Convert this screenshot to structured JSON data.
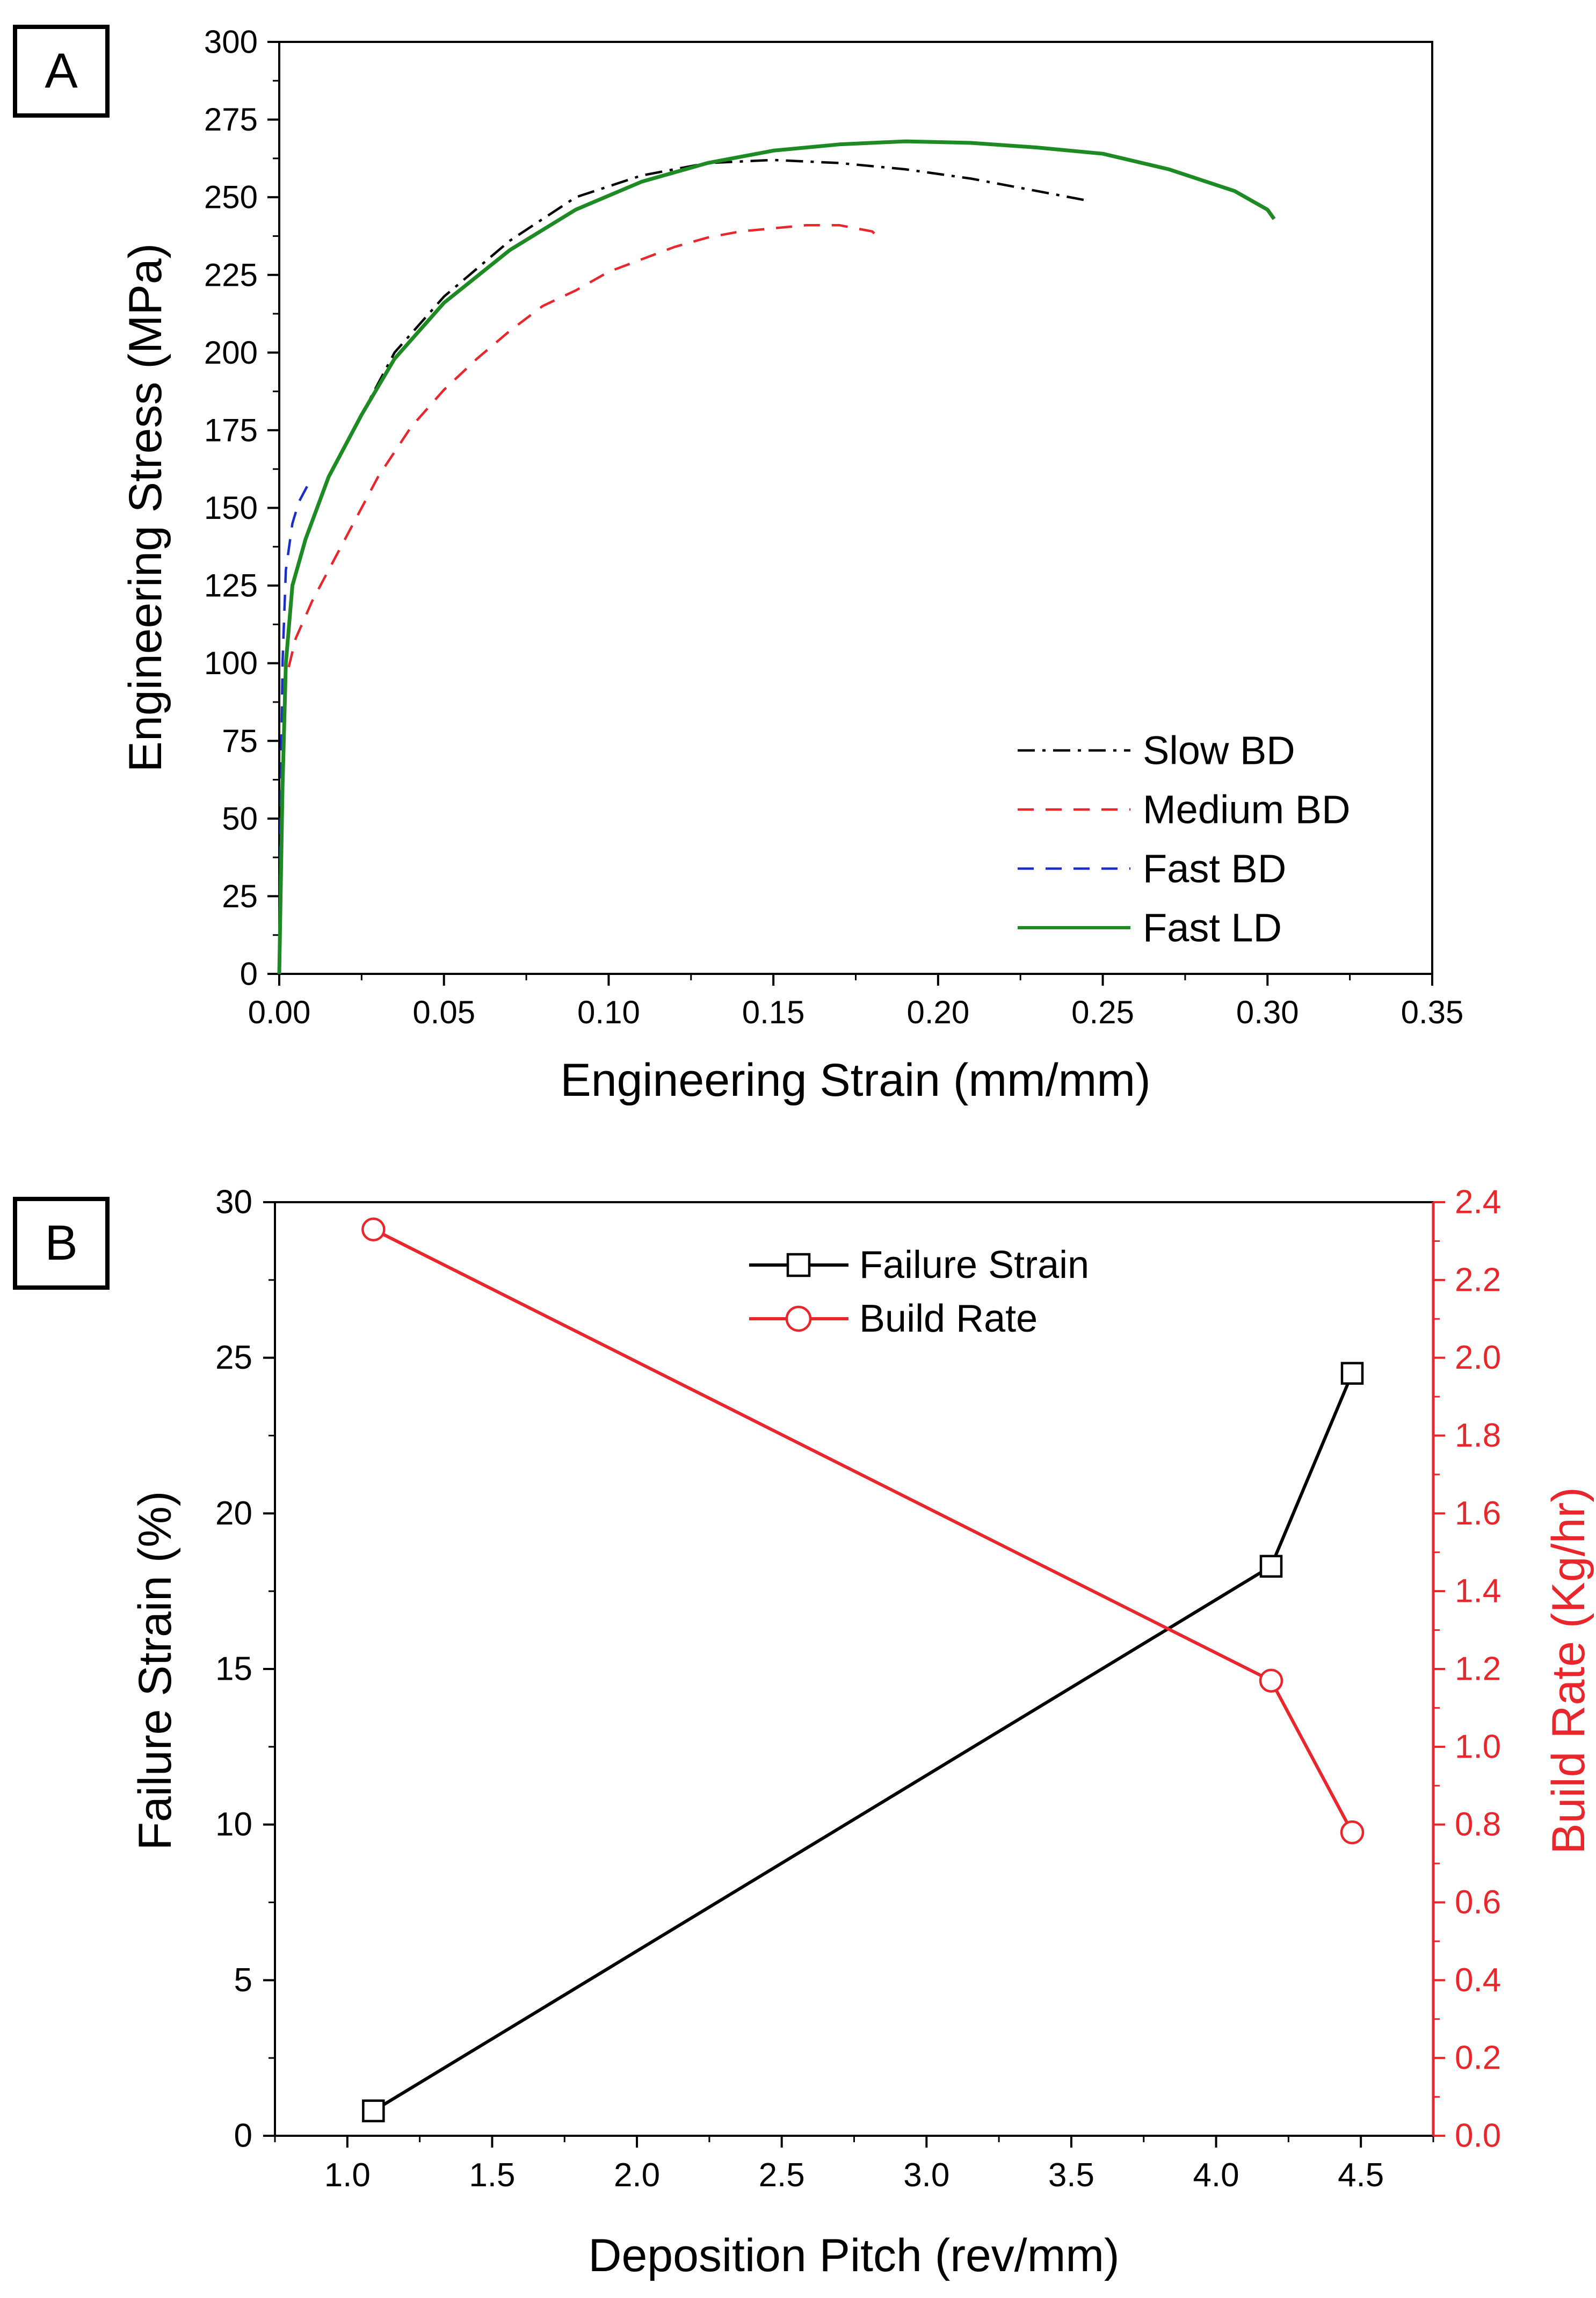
{
  "chart_data": [
    {
      "panel_label": "A",
      "type": "line",
      "xlabel": "Engineering Strain (mm/mm)",
      "ylabel": "Engineering Stress (MPa)",
      "xlim": [
        0,
        0.35
      ],
      "ylim": [
        0,
        300
      ],
      "x_ticks": [
        0,
        0.05,
        0.1,
        0.15,
        0.2,
        0.25,
        0.3,
        0.35
      ],
      "x_tick_labels": [
        "0.00",
        "0.05",
        "0.10",
        "0.15",
        "0.20",
        "0.25",
        "0.30",
        "0.35"
      ],
      "y_ticks": [
        0,
        25,
        50,
        75,
        100,
        125,
        150,
        175,
        200,
        225,
        250,
        275,
        300
      ],
      "y_tick_labels": [
        "0",
        "25",
        "50",
        "75",
        "100",
        "125",
        "150",
        "175",
        "200",
        "225",
        "250",
        "275",
        "300"
      ],
      "legend_position": "bottom-right",
      "series": [
        {
          "name": "Slow BD",
          "color": "#000000",
          "style": "dashdot",
          "points": [
            [
              0,
              0
            ],
            [
              0.001,
              60
            ],
            [
              0.002,
              100
            ],
            [
              0.004,
              125
            ],
            [
              0.008,
              140
            ],
            [
              0.015,
              160
            ],
            [
              0.025,
              180
            ],
            [
              0.035,
              200
            ],
            [
              0.05,
              218
            ],
            [
              0.07,
              236
            ],
            [
              0.09,
              250
            ],
            [
              0.11,
              257
            ],
            [
              0.13,
              261
            ],
            [
              0.15,
              262
            ],
            [
              0.17,
              261
            ],
            [
              0.19,
              259
            ],
            [
              0.21,
              256
            ],
            [
              0.23,
              252
            ],
            [
              0.245,
              249
            ]
          ]
        },
        {
          "name": "Medium BD",
          "color": "#e8262b",
          "style": "dashed",
          "points": [
            [
              0,
              0
            ],
            [
              0.001,
              60
            ],
            [
              0.002,
              95
            ],
            [
              0.005,
              108
            ],
            [
              0.01,
              120
            ],
            [
              0.02,
              140
            ],
            [
              0.03,
              160
            ],
            [
              0.04,
              176
            ],
            [
              0.05,
              188
            ],
            [
              0.06,
              198
            ],
            [
              0.07,
              207
            ],
            [
              0.08,
              215
            ],
            [
              0.09,
              220
            ],
            [
              0.1,
              226
            ],
            [
              0.11,
              230
            ],
            [
              0.12,
              234
            ],
            [
              0.13,
              237
            ],
            [
              0.14,
              239
            ],
            [
              0.15,
              240
            ],
            [
              0.16,
              241
            ],
            [
              0.17,
              241
            ],
            [
              0.18,
              239
            ],
            [
              0.183,
              236
            ]
          ]
        },
        {
          "name": "Fast BD",
          "color": "#1b2ec8",
          "style": "dashed",
          "points": [
            [
              0,
              0
            ],
            [
              0.0005,
              60
            ],
            [
              0.001,
              100
            ],
            [
              0.002,
              130
            ],
            [
              0.004,
              145
            ],
            [
              0.006,
              152
            ],
            [
              0.009,
              158
            ]
          ]
        },
        {
          "name": "Fast LD",
          "color": "#1e8a23",
          "style": "solid",
          "points": [
            [
              0,
              0
            ],
            [
              0.001,
              60
            ],
            [
              0.002,
              100
            ],
            [
              0.004,
              125
            ],
            [
              0.008,
              140
            ],
            [
              0.015,
              160
            ],
            [
              0.025,
              180
            ],
            [
              0.035,
              198
            ],
            [
              0.05,
              216
            ],
            [
              0.07,
              233
            ],
            [
              0.09,
              246
            ],
            [
              0.11,
              255
            ],
            [
              0.13,
              261
            ],
            [
              0.15,
              265
            ],
            [
              0.17,
              267
            ],
            [
              0.19,
              268
            ],
            [
              0.21,
              267.5
            ],
            [
              0.23,
              266
            ],
            [
              0.25,
              264
            ],
            [
              0.27,
              259
            ],
            [
              0.29,
              252
            ],
            [
              0.3,
              246
            ],
            [
              0.302,
              243
            ]
          ]
        }
      ]
    },
    {
      "panel_label": "B",
      "type": "line",
      "xlabel": "Deposition Pitch (rev/mm)",
      "ylabel": "Failure Strain (%)",
      "ylabel_right": "Build Rate (Kg/hr)",
      "xlim": [
        0.75,
        4.75
      ],
      "ylim": [
        0,
        30
      ],
      "ylim_right": [
        0,
        2.4
      ],
      "x_ticks": [
        1.0,
        1.5,
        2.0,
        2.5,
        3.0,
        3.5,
        4.0,
        4.5
      ],
      "x_tick_labels": [
        "1.0",
        "1.5",
        "2.0",
        "2.5",
        "3.0",
        "3.5",
        "4.0",
        "4.5"
      ],
      "y_ticks": [
        0,
        5,
        10,
        15,
        20,
        25,
        30
      ],
      "y_tick_labels": [
        "0",
        "5",
        "10",
        "15",
        "20",
        "25",
        "30"
      ],
      "y_right_ticks": [
        0,
        0.2,
        0.4,
        0.6,
        0.8,
        1.0,
        1.2,
        1.4,
        1.6,
        1.8,
        2.0,
        2.2,
        2.4
      ],
      "y_right_tick_labels": [
        "0.0",
        "0.2",
        "0.4",
        "0.6",
        "0.8",
        "1.0",
        "1.2",
        "1.4",
        "1.6",
        "1.8",
        "2.0",
        "2.2",
        "2.4"
      ],
      "legend_position": "top-center",
      "series": [
        {
          "name": "Failure Strain",
          "color": "#000000",
          "marker": "square",
          "axis": "left",
          "x": [
            1.09,
            4.19,
            4.47
          ],
          "y": [
            0.8,
            18.3,
            24.5
          ]
        },
        {
          "name": "Build Rate",
          "color": "#e8262b",
          "marker": "circle",
          "axis": "right",
          "x": [
            1.09,
            4.19,
            4.47
          ],
          "y": [
            2.33,
            1.17,
            0.78
          ]
        }
      ]
    }
  ]
}
